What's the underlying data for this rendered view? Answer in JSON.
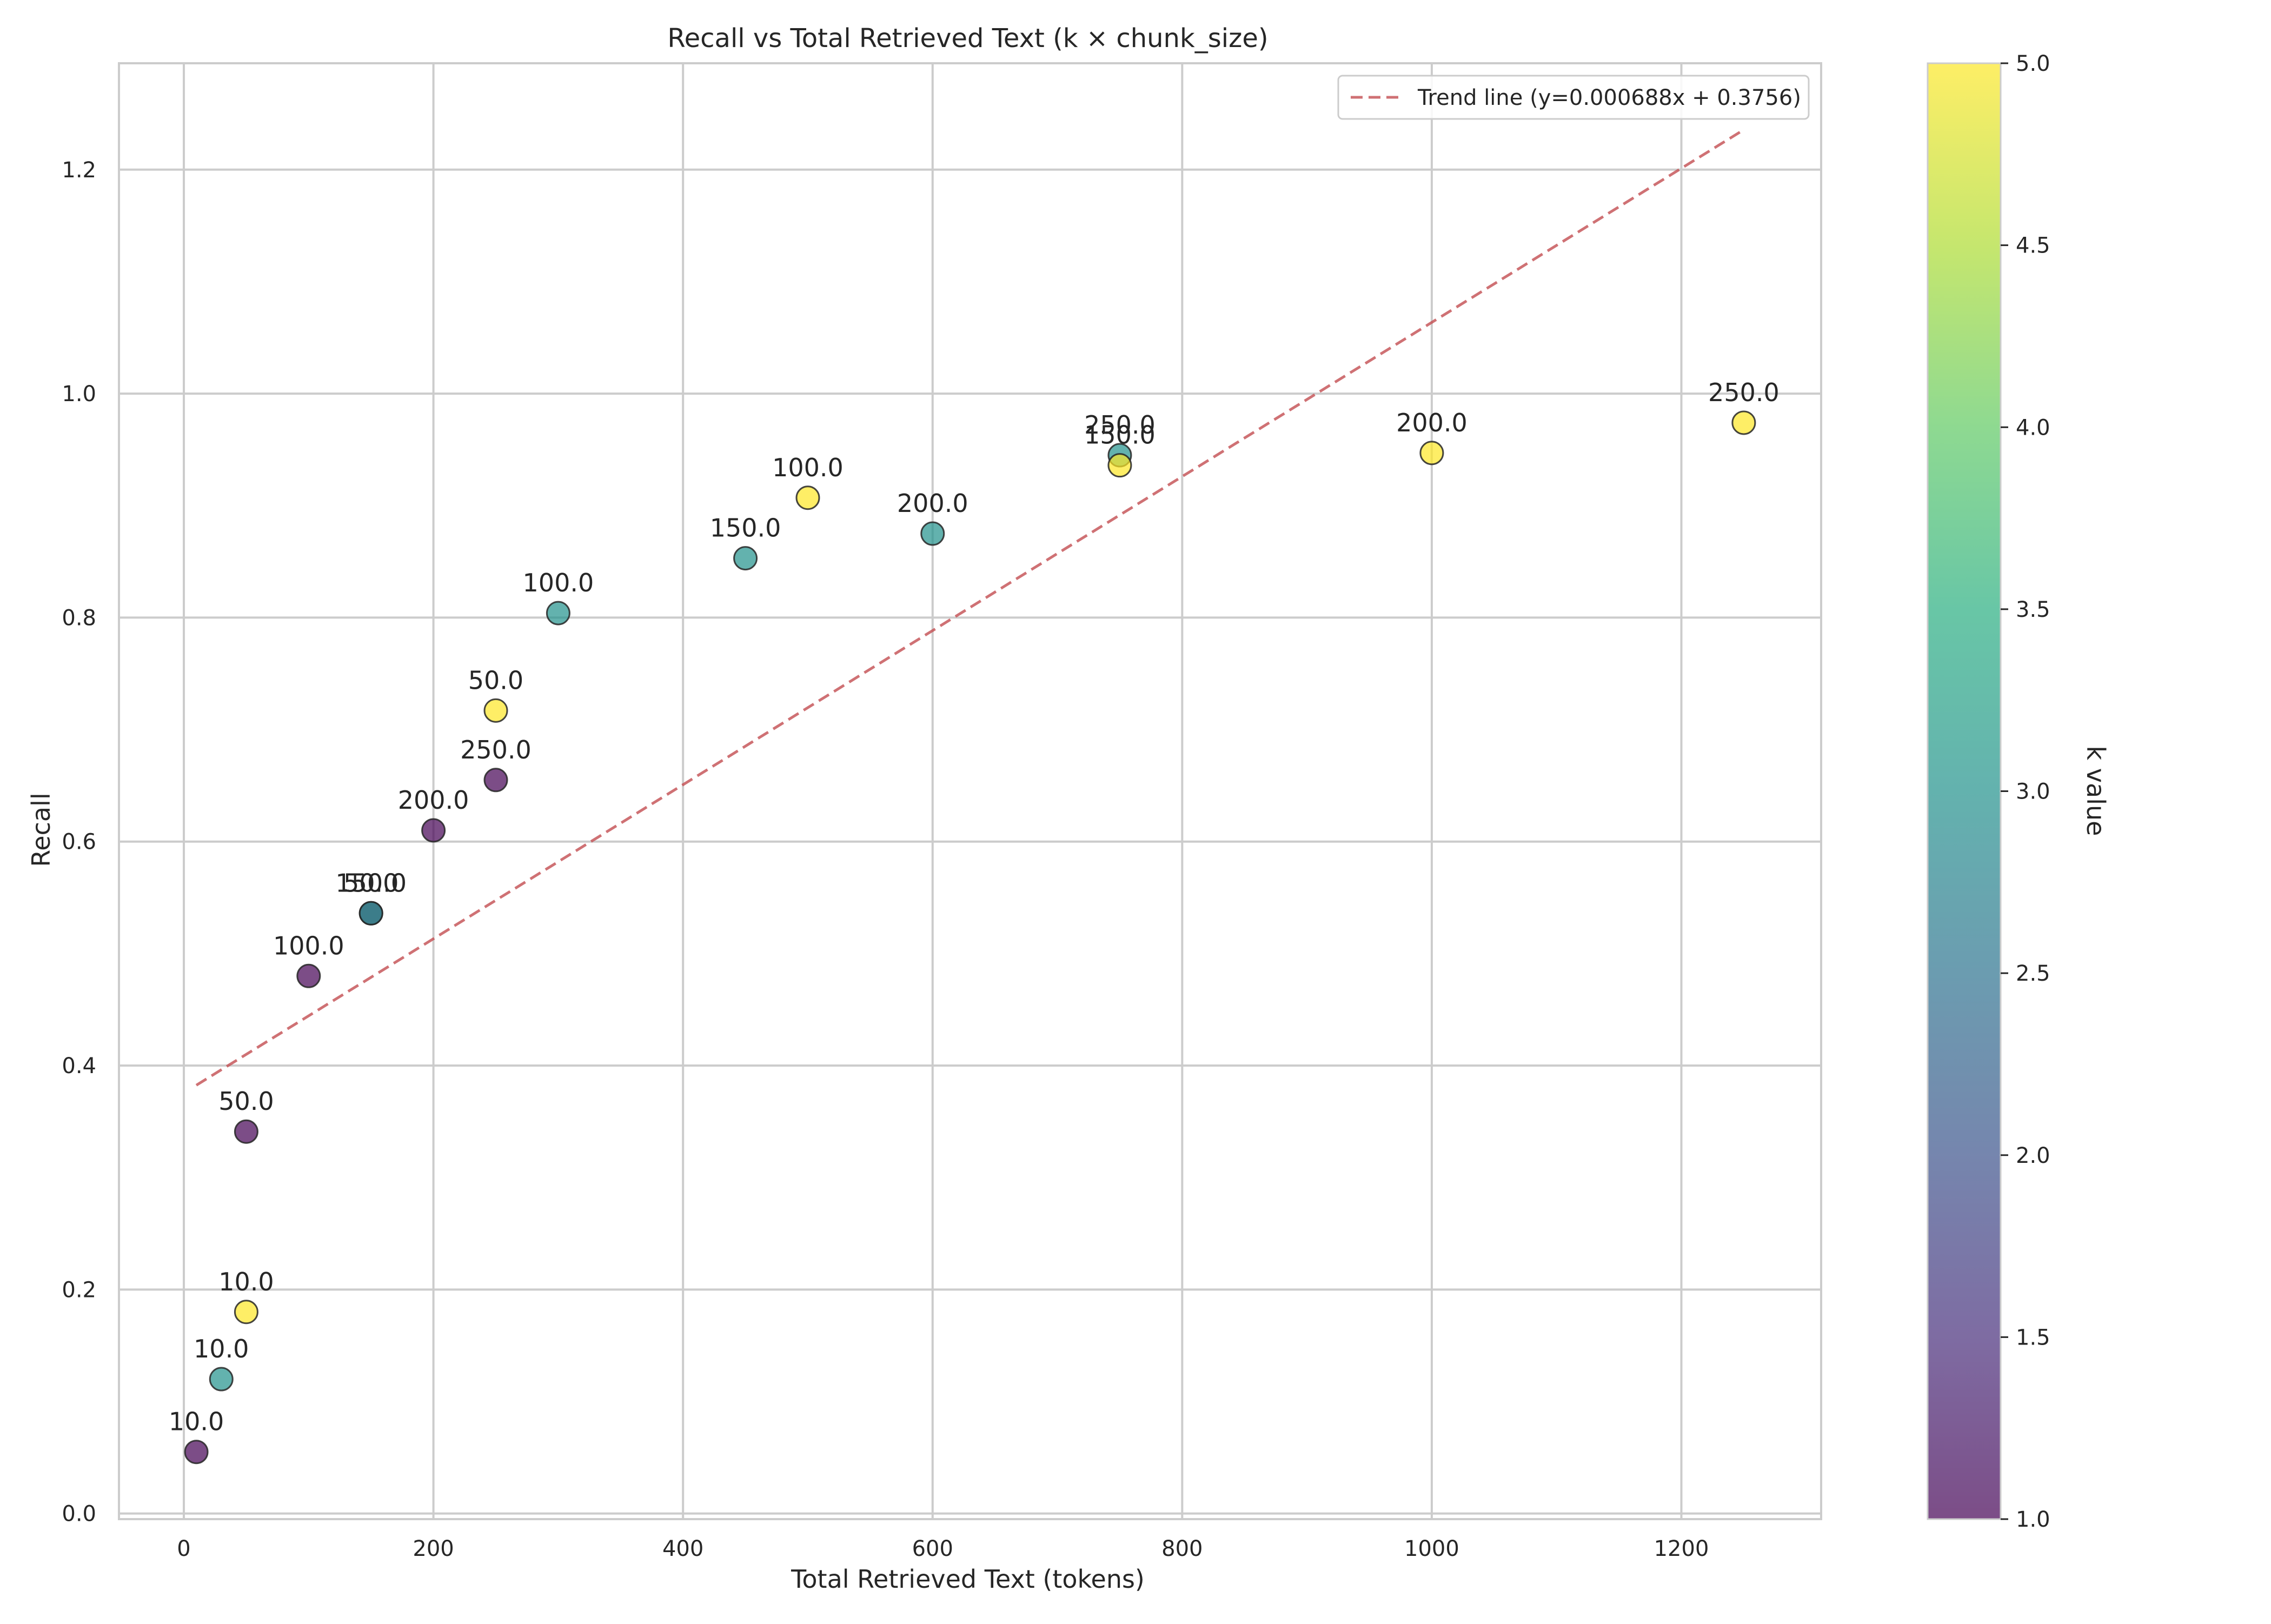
{
  "chart_data": {
    "type": "scatter",
    "title": "Recall vs Total Retrieved Text (k × chunk_size)",
    "xlabel": "Total Retrieved Text (tokens)",
    "ylabel": "Recall",
    "xlim": [
      -52,
      1312
    ],
    "ylim": [
      -0.005,
      1.295
    ],
    "x_ticks": [
      0,
      200,
      400,
      600,
      800,
      1000,
      1200
    ],
    "x_tick_labels": [
      "0",
      "200",
      "400",
      "600",
      "800",
      "1000",
      "1200"
    ],
    "y_ticks": [
      0.0,
      0.2,
      0.4,
      0.6,
      0.8,
      1.0,
      1.2
    ],
    "y_tick_labels": [
      "0.0",
      "0.2",
      "0.4",
      "0.6",
      "0.8",
      "1.0",
      "1.2"
    ],
    "grid": true,
    "colormap": "viridis",
    "colorbar": {
      "label": "k value",
      "range": [
        1.0,
        5.0
      ],
      "ticks": [
        1.0,
        1.5,
        2.0,
        2.5,
        3.0,
        3.5,
        4.0,
        4.5,
        5.0
      ],
      "tick_labels": [
        "1.0",
        "1.5",
        "2.0",
        "2.5",
        "3.0",
        "3.5",
        "4.0",
        "4.5",
        "5.0"
      ]
    },
    "trend_line": {
      "label": "Trend line (y=0.000688x + 0.3756)",
      "slope": 0.000688,
      "intercept": 0.3756,
      "x_range": [
        10,
        1250
      ],
      "color": "#c44e52",
      "style": "dashed"
    },
    "legend_placement": "top-right",
    "points": [
      {
        "x": 10,
        "y": 0.055,
        "k": 1,
        "label": "10.0"
      },
      {
        "x": 50,
        "y": 0.341,
        "k": 1,
        "label": "50.0"
      },
      {
        "x": 100,
        "y": 0.48,
        "k": 1,
        "label": "100.0"
      },
      {
        "x": 150,
        "y": 0.536,
        "k": 1,
        "label": "150.0"
      },
      {
        "x": 200,
        "y": 0.61,
        "k": 1,
        "label": "200.0"
      },
      {
        "x": 250,
        "y": 0.655,
        "k": 1,
        "label": "250.0"
      },
      {
        "x": 30,
        "y": 0.12,
        "k": 3,
        "label": "10.0"
      },
      {
        "x": 150,
        "y": 0.536,
        "k": 3,
        "label": "50.0"
      },
      {
        "x": 300,
        "y": 0.804,
        "k": 3,
        "label": "100.0"
      },
      {
        "x": 450,
        "y": 0.853,
        "k": 3,
        "label": "150.0"
      },
      {
        "x": 600,
        "y": 0.875,
        "k": 3,
        "label": "200.0"
      },
      {
        "x": 750,
        "y": 0.945,
        "k": 3,
        "label": "250.0"
      },
      {
        "x": 50,
        "y": 0.18,
        "k": 5,
        "label": "10.0"
      },
      {
        "x": 250,
        "y": 0.717,
        "k": 5,
        "label": "50.0"
      },
      {
        "x": 500,
        "y": 0.907,
        "k": 5,
        "label": "100.0"
      },
      {
        "x": 750,
        "y": 0.936,
        "k": 5,
        "label": "150.0"
      },
      {
        "x": 1000,
        "y": 0.947,
        "k": 5,
        "label": "200.0"
      },
      {
        "x": 1250,
        "y": 0.974,
        "k": 5,
        "label": "250.0"
      }
    ]
  }
}
